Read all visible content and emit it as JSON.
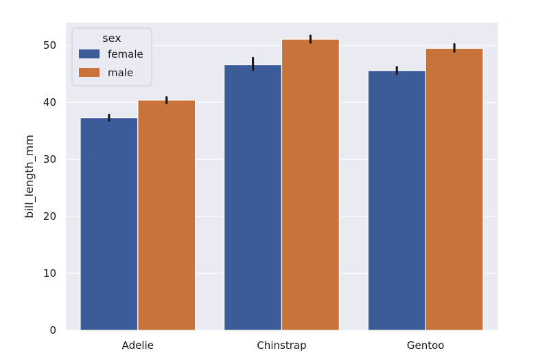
{
  "chart_data": {
    "type": "bar",
    "categories": [
      "Adelie",
      "Chinstrap",
      "Gentoo"
    ],
    "series": [
      {
        "name": "female",
        "values": [
          37.3,
          46.6,
          45.6
        ],
        "ci": [
          [
            36.8,
            37.8
          ],
          [
            45.7,
            47.8
          ],
          [
            45.0,
            46.2
          ]
        ],
        "color": "#3b5c99"
      },
      {
        "name": "male",
        "values": [
          40.4,
          51.1,
          49.5
        ],
        "ci": [
          [
            39.9,
            40.9
          ],
          [
            50.5,
            51.7
          ],
          [
            48.9,
            50.2
          ]
        ],
        "color": "#c8733a"
      }
    ],
    "xlabel": "",
    "ylabel": "bill_length_mm",
    "ylim": [
      0,
      54
    ],
    "yticks": [
      0,
      10,
      20,
      30,
      40,
      50
    ],
    "legend": {
      "title": "sex",
      "placement": "top-left"
    },
    "grid": true,
    "background_color": "#eaeaf2",
    "errorbar_color": "#1c1c1c"
  }
}
